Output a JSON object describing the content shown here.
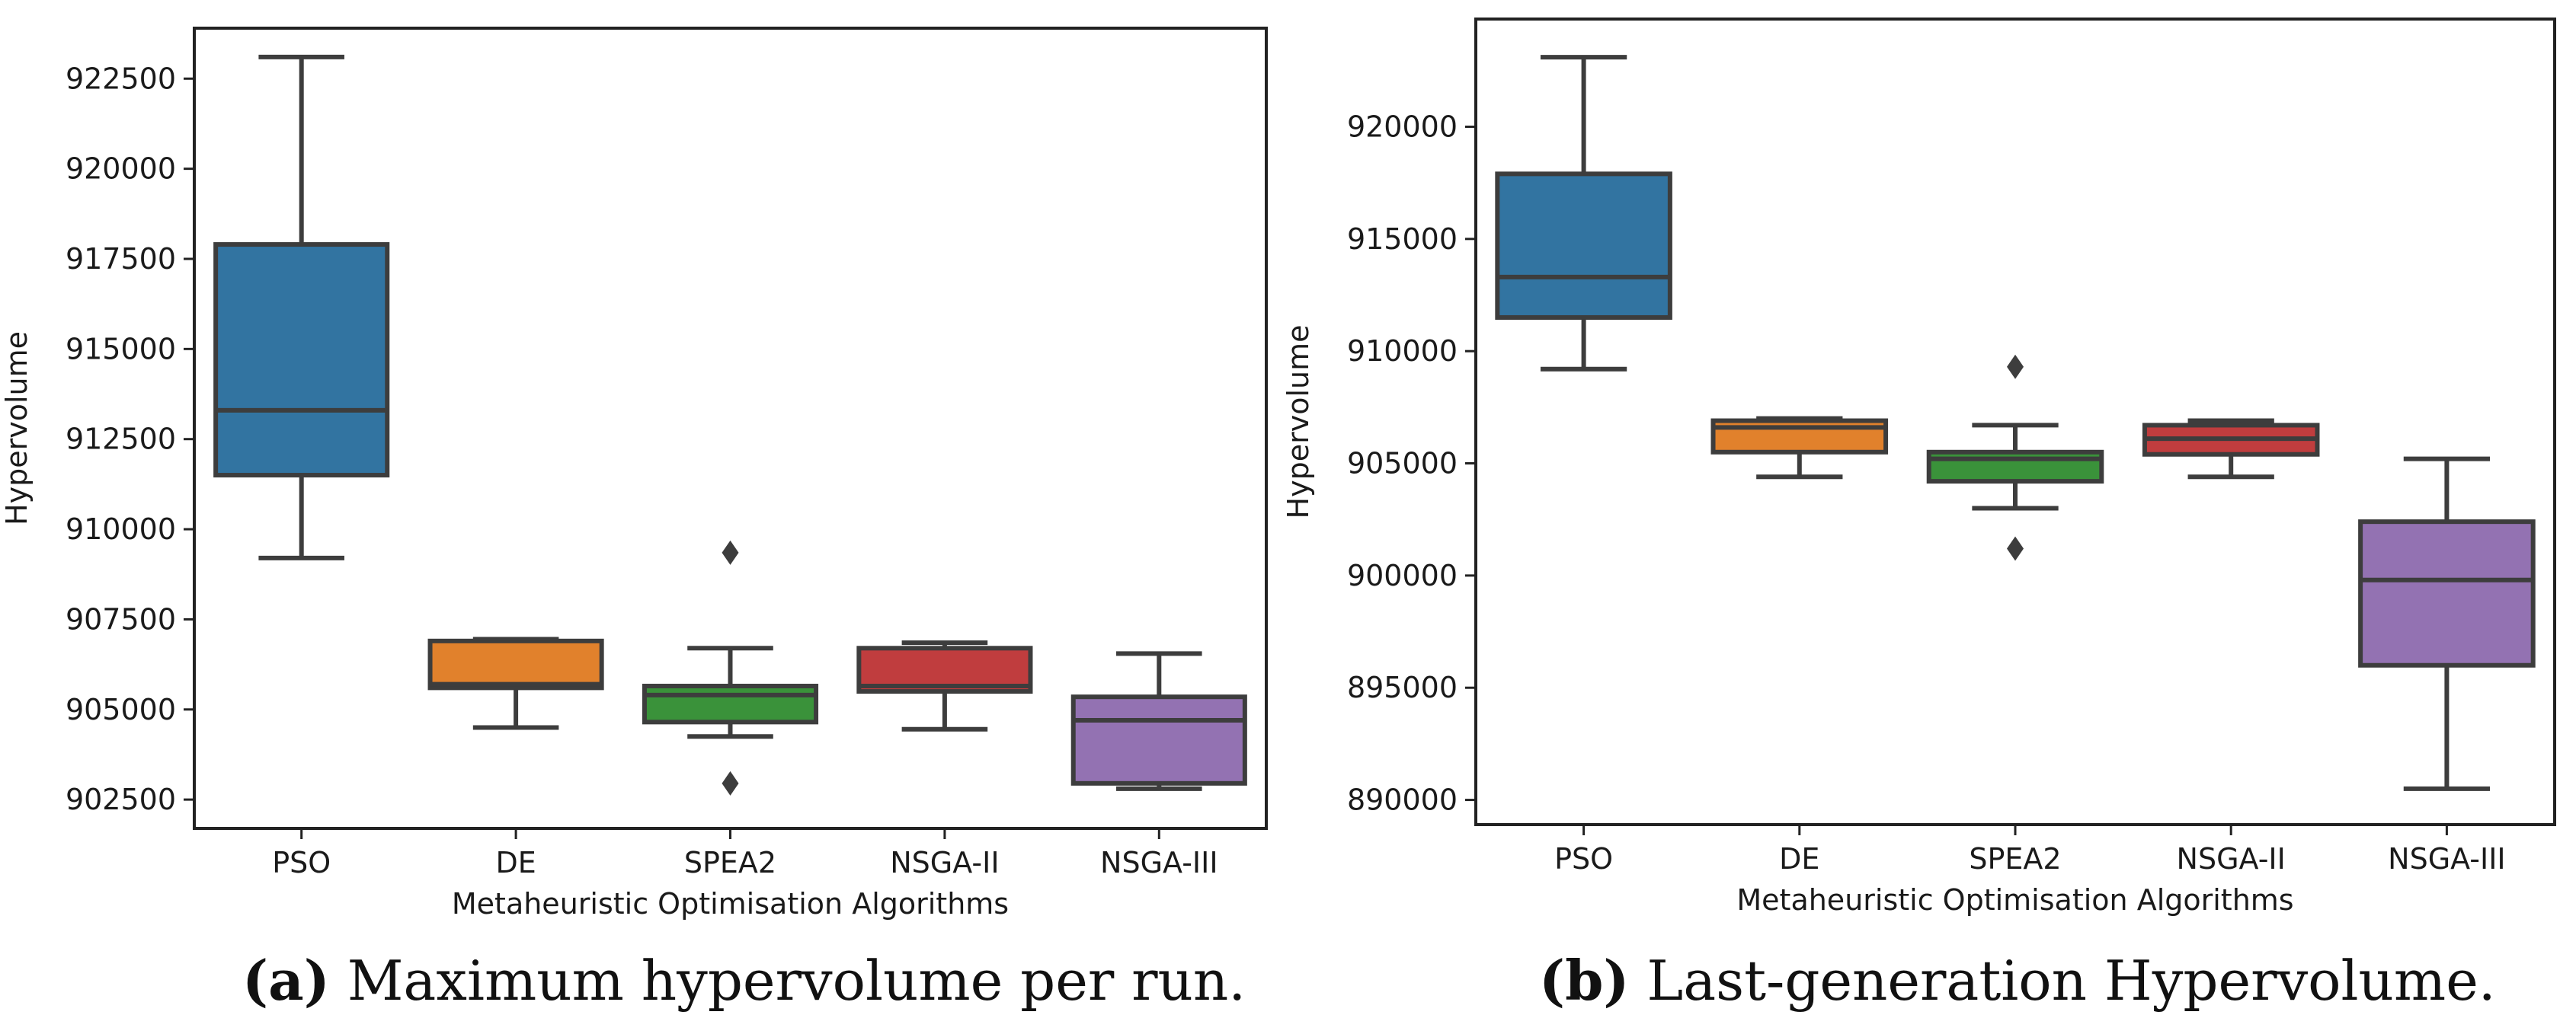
{
  "chart_data": [
    {
      "type": "box",
      "panel": "a",
      "title": "",
      "xlabel": "Metaheuristic Optimisation Algorithms",
      "ylabel": "Hypervolume",
      "ylim": [
        901700,
        923900
      ],
      "yticks": [
        902500,
        905000,
        907500,
        910000,
        912500,
        915000,
        917500,
        920000,
        922500
      ],
      "categories": [
        "PSO",
        "DE",
        "SPEA2",
        "NSGA-II",
        "NSGA-III"
      ],
      "boxes": [
        {
          "name": "PSO",
          "color": "#3274a1",
          "whisker_low": 909200,
          "q1": 911500,
          "median": 913300,
          "q3": 917900,
          "whisker_high": 923100,
          "outliers": []
        },
        {
          "name": "DE",
          "color": "#e1812c",
          "whisker_low": 904500,
          "q1": 905600,
          "median": 905700,
          "q3": 906900,
          "whisker_high": 906950,
          "outliers": []
        },
        {
          "name": "SPEA2",
          "color": "#3a923a",
          "whisker_low": 904250,
          "q1": 904650,
          "median": 905400,
          "q3": 905650,
          "whisker_high": 906700,
          "outliers": [
            909350,
            902950
          ]
        },
        {
          "name": "NSGA-II",
          "color": "#c03d3e",
          "whisker_low": 904450,
          "q1": 905500,
          "median": 905650,
          "q3": 906700,
          "whisker_high": 906850,
          "outliers": []
        },
        {
          "name": "NSGA-III",
          "color": "#9372b2",
          "whisker_low": 902800,
          "q1": 902950,
          "median": 904700,
          "q3": 905350,
          "whisker_high": 906550,
          "outliers": []
        }
      ]
    },
    {
      "type": "box",
      "panel": "b",
      "title": "",
      "xlabel": "Metaheuristic Optimisation Algorithms",
      "ylabel": "Hypervolume",
      "ylim": [
        888900,
        924800
      ],
      "yticks": [
        890000,
        895000,
        900000,
        905000,
        910000,
        915000,
        920000
      ],
      "categories": [
        "PSO",
        "DE",
        "SPEA2",
        "NSGA-II",
        "NSGA-III"
      ],
      "boxes": [
        {
          "name": "PSO",
          "color": "#3274a1",
          "whisker_low": 909200,
          "q1": 911500,
          "median": 913300,
          "q3": 917900,
          "whisker_high": 923100,
          "outliers": []
        },
        {
          "name": "DE",
          "color": "#e1812c",
          "whisker_low": 904400,
          "q1": 905500,
          "median": 906600,
          "q3": 906900,
          "whisker_high": 907000,
          "outliers": []
        },
        {
          "name": "SPEA2",
          "color": "#3a923a",
          "whisker_low": 903000,
          "q1": 904200,
          "median": 905200,
          "q3": 905500,
          "whisker_high": 906700,
          "outliers": [
            909300,
            901200
          ]
        },
        {
          "name": "NSGA-II",
          "color": "#c03d3e",
          "whisker_low": 904400,
          "q1": 905400,
          "median": 906100,
          "q3": 906700,
          "whisker_high": 906900,
          "outliers": []
        },
        {
          "name": "NSGA-III",
          "color": "#9372b2",
          "whisker_low": 890500,
          "q1": 896000,
          "median": 899800,
          "q3": 902400,
          "whisker_high": 905200,
          "outliers": []
        }
      ]
    }
  ],
  "captions": [
    {
      "label": "(a)",
      "text": "Maximum hypervolume per run."
    },
    {
      "label": "(b)",
      "text": "Last-generation Hypervolume."
    }
  ]
}
